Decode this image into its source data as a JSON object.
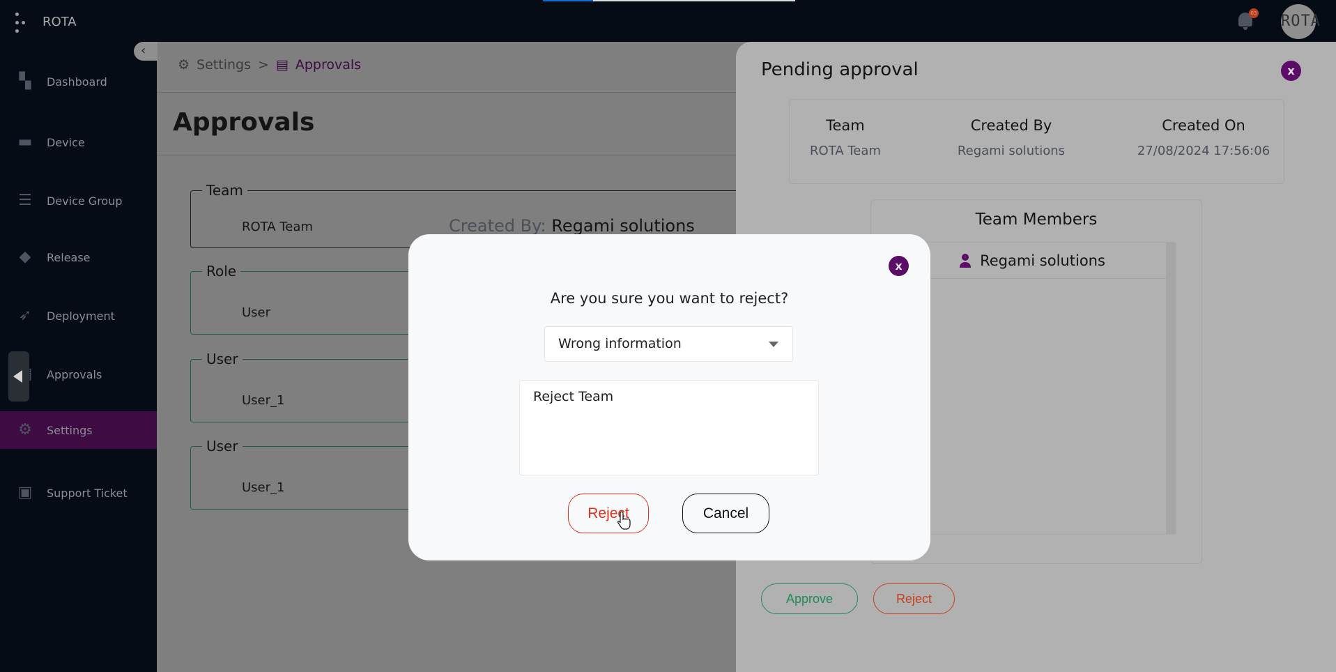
{
  "topbar": {
    "brand": "ROTA",
    "progress_percent": 20,
    "notification_count": "03",
    "avatar_text": "ROTA"
  },
  "sidebar": {
    "items": [
      {
        "label": "Dashboard",
        "icon": "dashboard-icon"
      },
      {
        "label": "Device",
        "icon": "device-icon"
      },
      {
        "label": "Device Group",
        "icon": "device-group-icon"
      },
      {
        "label": "Release",
        "icon": "release-box-icon"
      },
      {
        "label": "Deployment",
        "icon": "rocket-icon"
      },
      {
        "label": "Approvals",
        "icon": "document-check-icon"
      },
      {
        "label": "Settings",
        "icon": "gear-icon",
        "active": true
      },
      {
        "label": "Support Ticket",
        "icon": "ticket-icon"
      }
    ]
  },
  "breadcrumb": {
    "items": [
      "Settings",
      "Approvals"
    ],
    "separator": ">"
  },
  "page": {
    "title": "Approvals"
  },
  "fields": [
    {
      "legend": "Team",
      "value": "ROTA Team",
      "created_by_label": "Created By:",
      "created_by": "Regami solutions"
    },
    {
      "legend": "Role",
      "value": "User"
    },
    {
      "legend": "User",
      "value": "User_1"
    },
    {
      "legend": "User",
      "value": "User_1"
    }
  ],
  "panel": {
    "title": "Pending approval",
    "columns": [
      {
        "header": "Team",
        "value": "ROTA Team"
      },
      {
        "header": "Created By",
        "value": "Regami solutions"
      },
      {
        "header": "Created On",
        "value": "27/08/2024 17:56:06"
      }
    ],
    "members_title": "Team Members",
    "members": [
      "Regami solutions"
    ],
    "approve_label": "Approve",
    "reject_label": "Reject"
  },
  "modal": {
    "question": "Are you sure you want to reject?",
    "reason_selected": "Wrong information",
    "comment": "Reject Team",
    "reject_label": "Reject",
    "cancel_label": "Cancel",
    "close_label": "x"
  },
  "colors": {
    "accent": "#5a0c66",
    "reject": "#e0321c",
    "approve": "#1f8a5a",
    "sidebar_bg": "#060c16",
    "active_nav": "#3e0b43"
  }
}
